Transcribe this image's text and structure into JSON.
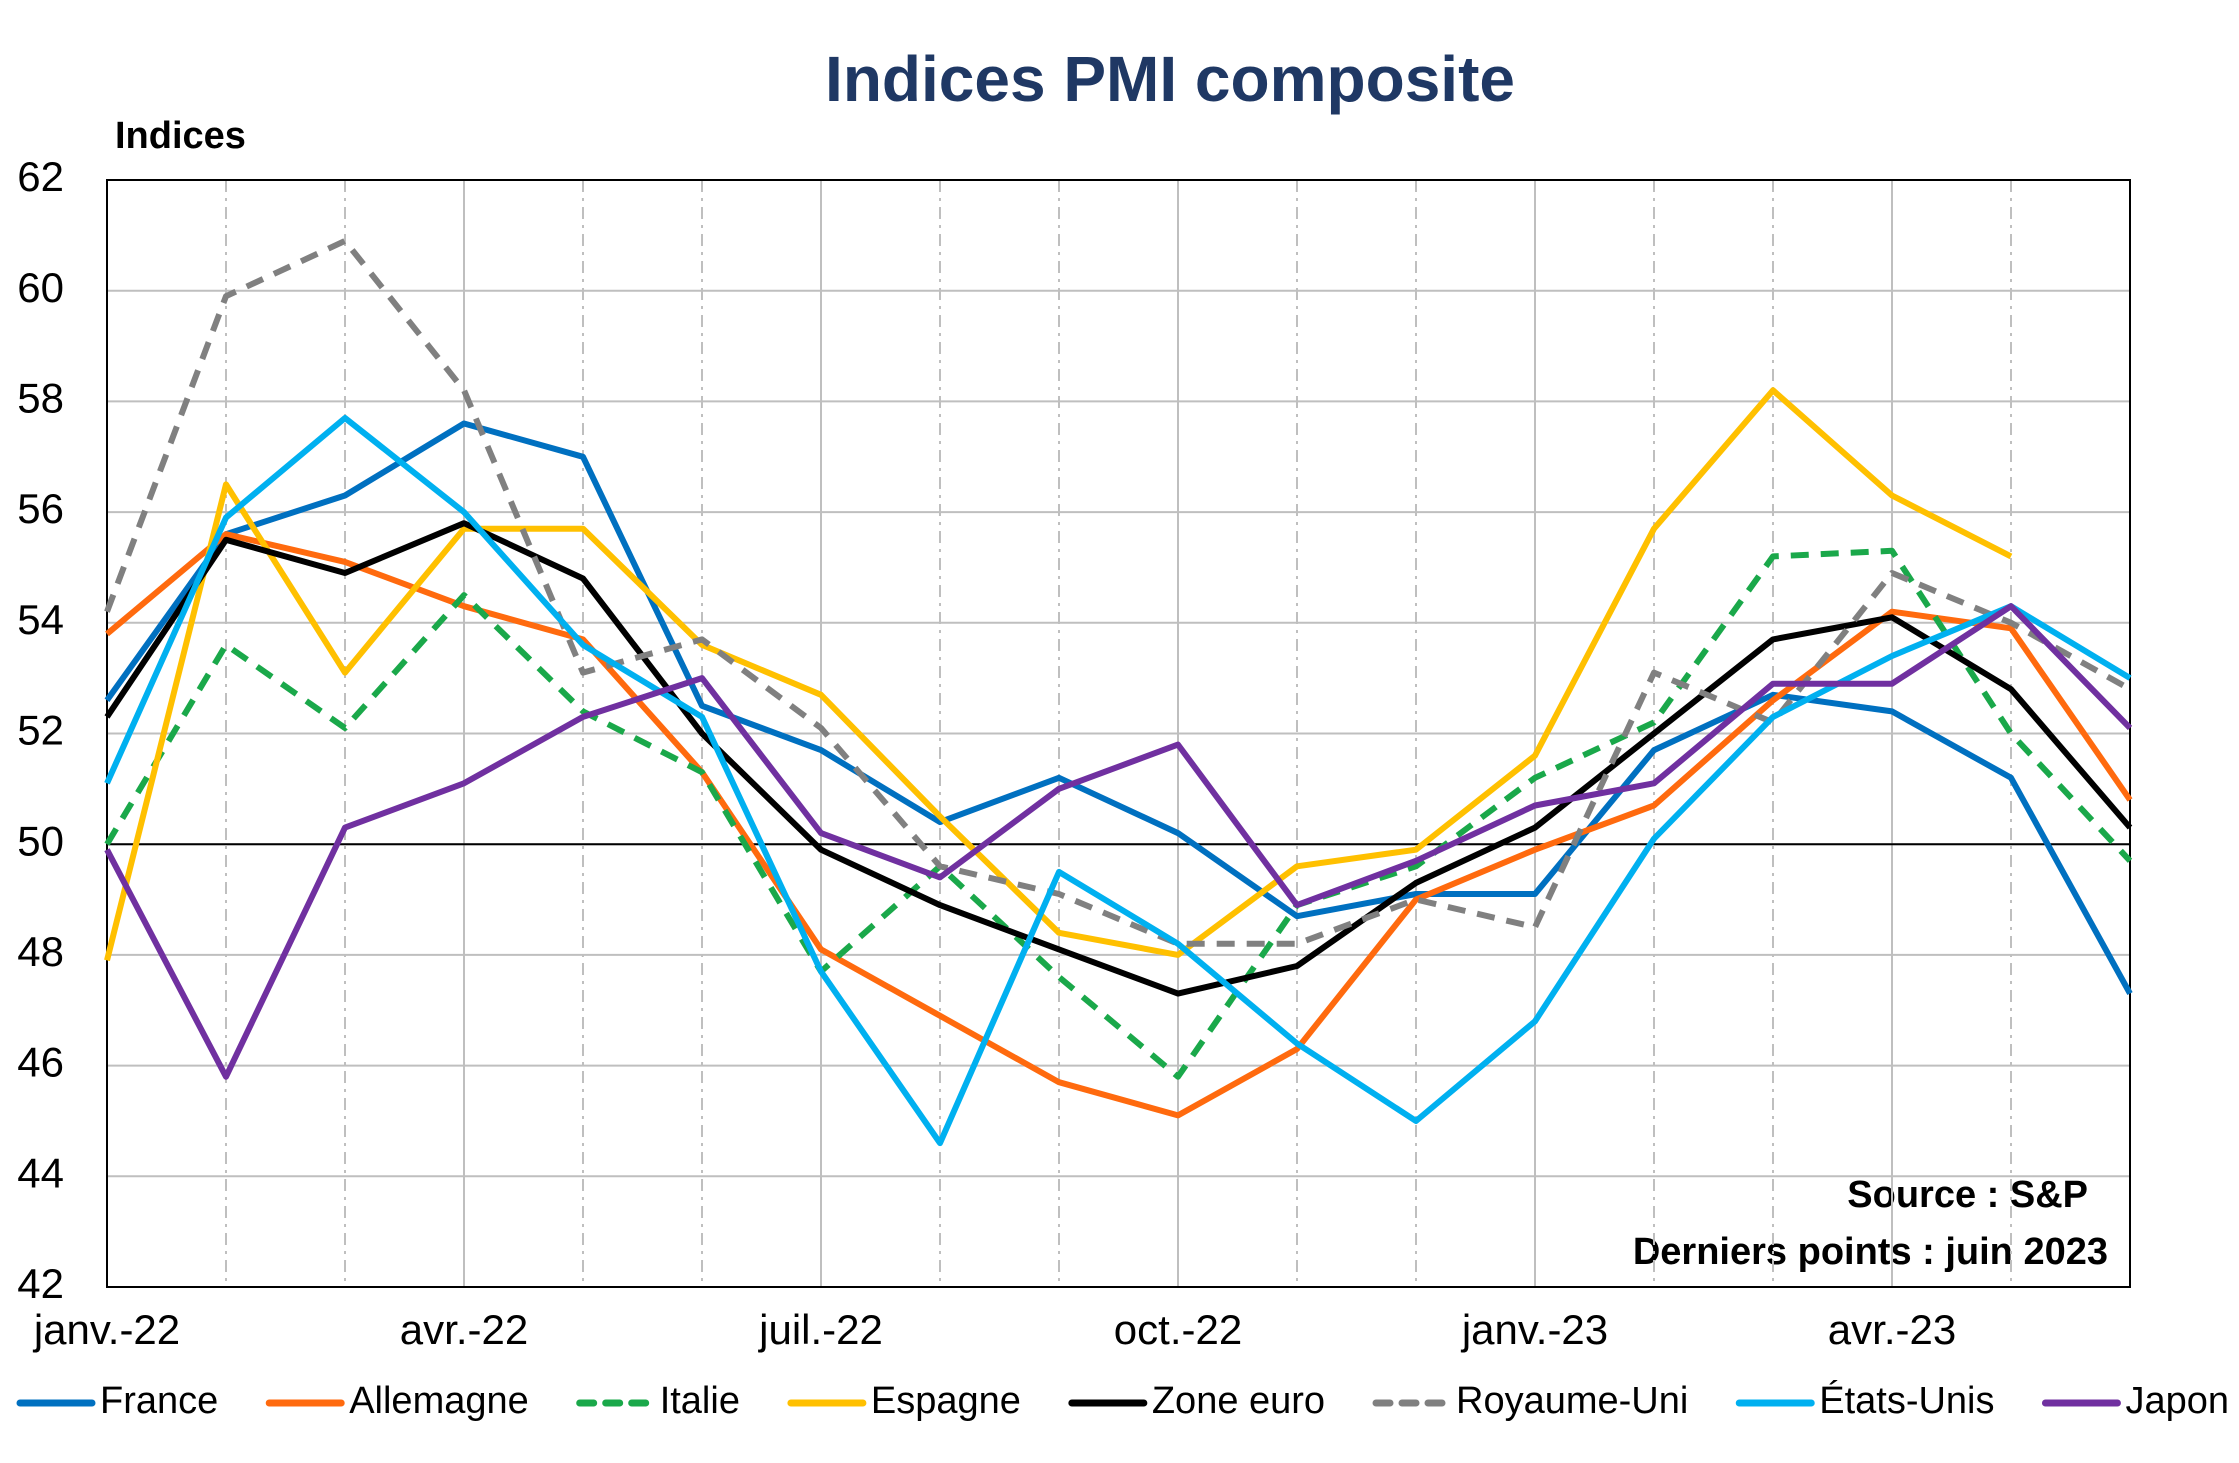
{
  "chart_data": {
    "type": "line",
    "title": "Indices PMI composite",
    "y_label": "Indices",
    "annotations": [
      "Source : S&P",
      "Derniers points : juin 2023"
    ],
    "categories": [
      "janv.-22",
      null,
      null,
      "avr.-22",
      null,
      null,
      "juil.-22",
      null,
      null,
      "oct.-22",
      null,
      null,
      "janv.-23",
      null,
      null,
      "avr.-23",
      null,
      null
    ],
    "ylim": [
      42,
      62
    ],
    "yticks": [
      42,
      44,
      46,
      48,
      50,
      52,
      54,
      56,
      58,
      60,
      62
    ],
    "grid": true,
    "reference_line": 50,
    "series": [
      {
        "name": "France",
        "color": "#0070c0",
        "dashed": false,
        "values": [
          52.6,
          55.6,
          56.3,
          57.6,
          57.0,
          52.5,
          51.7,
          50.4,
          51.2,
          50.2,
          48.7,
          49.1,
          49.1,
          51.7,
          52.7,
          52.4,
          51.2,
          47.3
        ]
      },
      {
        "name": "Allemagne",
        "color": "#ff6a0e",
        "dashed": false,
        "values": [
          53.8,
          55.6,
          55.1,
          54.3,
          53.7,
          51.3,
          48.1,
          46.9,
          45.7,
          45.1,
          46.3,
          49.0,
          49.9,
          50.7,
          52.6,
          54.2,
          53.9,
          50.8
        ]
      },
      {
        "name": "Italie",
        "color": "#1aa84a",
        "dashed": true,
        "values": [
          50.0,
          53.6,
          52.1,
          54.5,
          52.4,
          51.3,
          47.7,
          49.6,
          47.6,
          45.8,
          48.9,
          49.6,
          51.2,
          52.2,
          55.2,
          55.3,
          52.0,
          49.7
        ]
      },
      {
        "name": "Espagne",
        "color": "#ffc000",
        "dashed": false,
        "values": [
          47.9,
          56.5,
          53.1,
          55.7,
          55.7,
          53.6,
          52.7,
          50.5,
          48.4,
          48.0,
          49.6,
          49.9,
          51.6,
          55.7,
          58.2,
          56.3,
          55.2,
          null
        ]
      },
      {
        "name": "Zone euro",
        "color": "#000000",
        "dashed": false,
        "values": [
          52.3,
          55.5,
          54.9,
          55.8,
          54.8,
          52.0,
          49.9,
          48.9,
          48.1,
          47.3,
          47.8,
          49.3,
          50.3,
          52.0,
          53.7,
          54.1,
          52.8,
          50.3
        ]
      },
      {
        "name": "Royaume-Uni",
        "color": "#808080",
        "dashed": true,
        "values": [
          54.2,
          59.9,
          60.9,
          58.2,
          53.1,
          53.7,
          52.1,
          49.6,
          49.1,
          48.2,
          48.2,
          49.0,
          48.5,
          53.1,
          52.2,
          54.9,
          54.0,
          52.8
        ]
      },
      {
        "name": "États-Unis",
        "color": "#00b0f0",
        "dashed": false,
        "values": [
          51.1,
          55.9,
          57.7,
          56.0,
          53.6,
          52.3,
          47.7,
          44.6,
          49.5,
          48.2,
          46.4,
          45.0,
          46.8,
          50.1,
          52.3,
          53.4,
          54.3,
          53.0
        ]
      },
      {
        "name": "Japon",
        "color": "#7030a0",
        "dashed": false,
        "values": [
          49.9,
          45.8,
          50.3,
          51.1,
          52.3,
          53.0,
          50.2,
          49.4,
          51.0,
          51.8,
          48.9,
          49.7,
          50.7,
          51.1,
          52.9,
          52.9,
          54.3,
          52.1
        ]
      }
    ]
  }
}
